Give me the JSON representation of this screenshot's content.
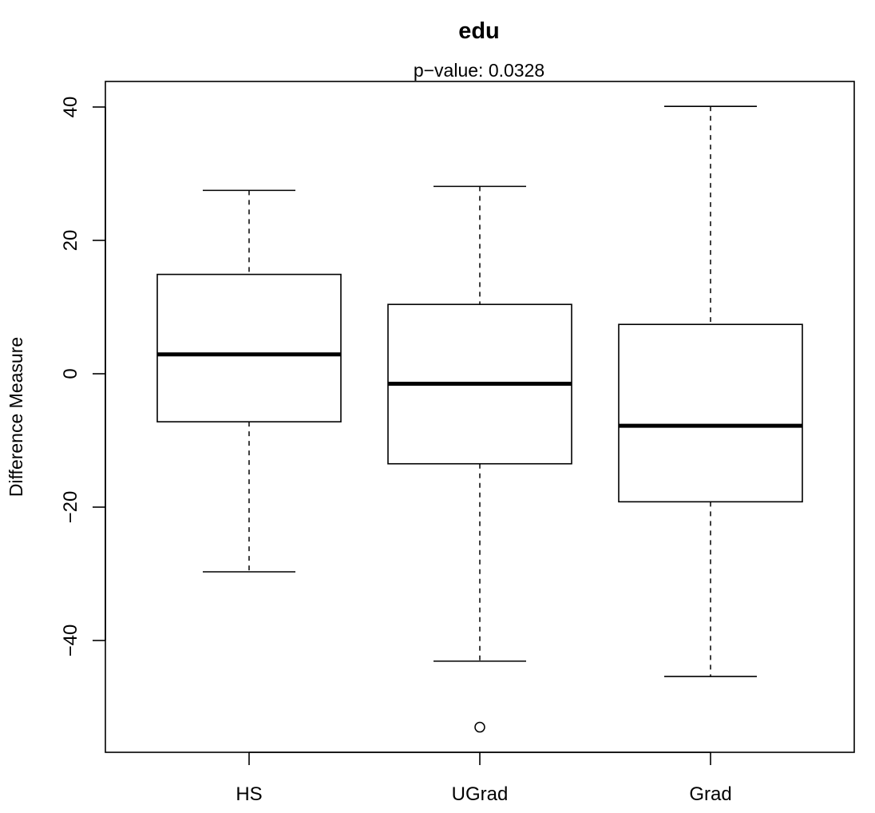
{
  "chart_data": {
    "type": "boxplot",
    "title": "edu",
    "subtitle": "p−value: 0.0328",
    "xlabel": "",
    "ylabel": "Difference Measure",
    "ylim": [
      -56,
      44
    ],
    "yticks": [
      40,
      20,
      0,
      -20,
      -40
    ],
    "ytick_labels": [
      "40",
      "20",
      "0",
      "−20",
      "−40"
    ],
    "grid": false,
    "categories": [
      "HS",
      "UGrad",
      "Grad"
    ],
    "boxes": [
      {
        "category": "HS",
        "whisker_low": -29.7,
        "q1": -7.2,
        "median": 2.9,
        "q3": 14.9,
        "whisker_high": 27.5,
        "outliers": []
      },
      {
        "category": "UGrad",
        "whisker_low": -43.1,
        "q1": -13.5,
        "median": -1.5,
        "q3": 10.4,
        "whisker_high": 28.1,
        "outliers": [
          -53.0
        ]
      },
      {
        "category": "Grad",
        "whisker_low": -45.4,
        "q1": -19.2,
        "median": -7.8,
        "q3": 7.4,
        "whisker_high": 40.1,
        "outliers": []
      }
    ]
  }
}
